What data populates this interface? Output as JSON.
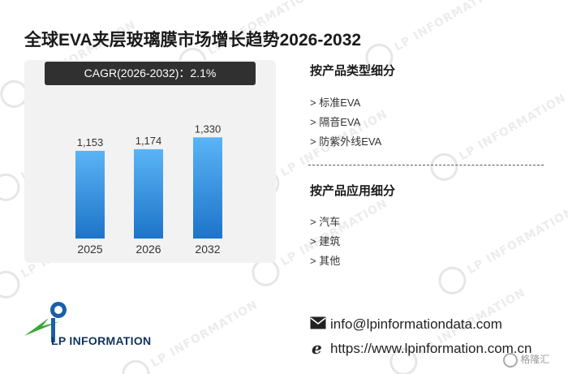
{
  "title": "全球EVA夹层玻璃膜市场增长趋势2026-2032",
  "cagr_label": "CAGR(2026-2032)：2.1%",
  "chart_data": {
    "type": "bar",
    "title": "",
    "xlabel": "",
    "ylabel": "",
    "categories": [
      "2025",
      "2026",
      "2032"
    ],
    "values": [
      1153,
      1174,
      1330
    ],
    "value_labels": [
      "1,153",
      "1,174",
      "1,330"
    ],
    "ylim": [
      0,
      1600
    ],
    "grid": false,
    "colors": {
      "bar_top": "#5ab4f5",
      "bar_bottom": "#1d74c9"
    }
  },
  "segments": {
    "type_title": "按产品类型细分",
    "type_items": [
      "> 标准EVA",
      "> 隔音EVA",
      "> 防紫外线EVA"
    ],
    "app_title": "按产品应用细分",
    "app_items": [
      "> 汽车",
      "> 建筑",
      "> 其他"
    ]
  },
  "brand": {
    "logo_text": "LP INFORMATION",
    "logo_colors": {
      "green": "#3aa636",
      "blue": "#1a5fa8",
      "navy": "#12335c"
    }
  },
  "contact": {
    "email": "info@lpinformationdata.com",
    "website": "https://www.lpinformation.com.cn"
  },
  "corner_brand": "格隆汇",
  "watermark_text": "LP INFORMATION"
}
